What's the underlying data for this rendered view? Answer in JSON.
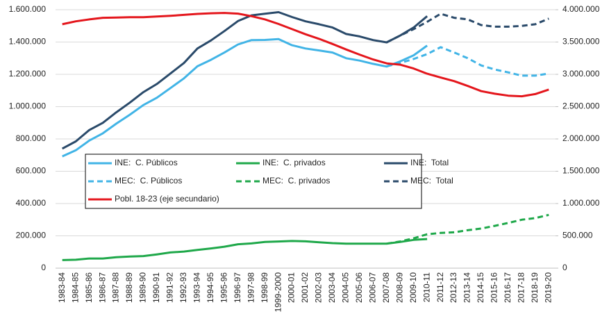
{
  "chart_data": {
    "type": "line",
    "categories": [
      "1983-84",
      "1984-85",
      "1985-86",
      "1986-87",
      "1987-88",
      "1988-89",
      "1989-90",
      "1990-91",
      "1991-92",
      "1992-93",
      "1993-94",
      "1994-95",
      "1995-96",
      "1996-97",
      "1997-98",
      "1998-99",
      "1999-2000",
      "2000-01",
      "2001-02",
      "2002-03",
      "2003-04",
      "2004-05",
      "2005-06",
      "2006-07",
      "2007-08",
      "2008-09",
      "2009-10",
      "2010-11",
      "2011-12",
      "2012-13",
      "2013-14",
      "2014-15",
      "2015-16",
      "2016-17",
      "2017-18",
      "2018-19",
      "2019-20"
    ],
    "ylim": [
      0,
      1600000
    ],
    "yticks": [
      0,
      {
        "value": 200000,
        "label": "200.000"
      },
      {
        "value": 400000,
        "label": "400.000"
      },
      {
        "value": 600000,
        "label": "600.000"
      },
      {
        "value": 800000,
        "label": "800.000"
      },
      {
        "value": 1000000,
        "label": "1.000.000"
      },
      {
        "value": 1200000,
        "label": "1.200.000"
      },
      {
        "value": 1400000,
        "label": "1.400.000"
      },
      {
        "value": 1600000,
        "label": "1.600.000"
      }
    ],
    "y2lim": [
      0,
      4000000
    ],
    "y2ticks": [
      0,
      {
        "value": 500000,
        "label": "500.000"
      },
      {
        "value": 1000000,
        "label": "1.000.000"
      },
      {
        "value": 1500000,
        "label": "1.500.000"
      },
      {
        "value": 2000000,
        "label": "2.000.000"
      },
      {
        "value": 2500000,
        "label": "2.500.000"
      },
      {
        "value": 3000000,
        "label": "3.000.000"
      },
      {
        "value": 3500000,
        "label": "3.500.000"
      },
      {
        "value": 4000000,
        "label": "4.000.000"
      }
    ],
    "grid": true,
    "series": [
      {
        "name": "INE:  C. Públicos",
        "color": "#41b4e6",
        "line_style": "solid",
        "values": [
          692000,
          730000,
          790000,
          835000,
          895000,
          950000,
          1010000,
          1055000,
          1115000,
          1175000,
          1250000,
          1290000,
          1335000,
          1385000,
          1412000,
          1413000,
          1418000,
          1380000,
          1360000,
          1348000,
          1335000,
          1300000,
          1285000,
          1265000,
          1248000,
          1280000,
          1318000,
          1378000,
          null,
          null,
          null,
          null,
          null,
          null,
          null,
          null,
          null
        ]
      },
      {
        "name": "INE:  C. privados",
        "color": "#1fa84a",
        "line_style": "solid",
        "values": [
          50000,
          52000,
          60000,
          60000,
          68000,
          72000,
          75000,
          85000,
          97000,
          103000,
          113000,
          122000,
          133000,
          148000,
          153000,
          162000,
          165000,
          168000,
          166000,
          160000,
          155000,
          152000,
          152000,
          152000,
          152000,
          162000,
          175000,
          180000,
          null,
          null,
          null,
          null,
          null,
          null,
          null,
          null,
          null
        ]
      },
      {
        "name": "INE:  Total",
        "color": "#2a4a6a",
        "line_style": "solid",
        "values": [
          740000,
          785000,
          855000,
          900000,
          965000,
          1025000,
          1090000,
          1140000,
          1205000,
          1270000,
          1360000,
          1410000,
          1468000,
          1530000,
          1565000,
          1575000,
          1585000,
          1555000,
          1528000,
          1510000,
          1490000,
          1450000,
          1435000,
          1412000,
          1398000,
          1440000,
          1490000,
          1560000,
          null,
          null,
          null,
          null,
          null,
          null,
          null,
          null,
          null
        ]
      },
      {
        "name": "MEC:  C. Públicos",
        "color": "#41b4e6",
        "line_style": "dashed",
        "values": [
          null,
          null,
          null,
          null,
          null,
          null,
          null,
          null,
          null,
          null,
          null,
          null,
          null,
          null,
          null,
          null,
          null,
          null,
          null,
          null,
          null,
          null,
          null,
          null,
          1250000,
          1270000,
          1295000,
          1325000,
          1368000,
          1335000,
          1300000,
          1255000,
          1230000,
          1212000,
          1192000,
          1192000,
          1205000
        ]
      },
      {
        "name": "MEC:  C. privados",
        "color": "#1fa84a",
        "line_style": "dashed",
        "values": [
          null,
          null,
          null,
          null,
          null,
          null,
          null,
          null,
          null,
          null,
          null,
          null,
          null,
          null,
          null,
          null,
          null,
          null,
          null,
          null,
          null,
          null,
          null,
          null,
          152000,
          165000,
          185000,
          210000,
          218000,
          222000,
          235000,
          245000,
          262000,
          280000,
          300000,
          310000,
          330000
        ]
      },
      {
        "name": "MEC:  Total",
        "color": "#2a4a6a",
        "line_style": "dashed",
        "values": [
          null,
          null,
          null,
          null,
          null,
          null,
          null,
          null,
          null,
          null,
          null,
          null,
          null,
          null,
          null,
          null,
          null,
          null,
          null,
          null,
          null,
          null,
          null,
          null,
          1398000,
          1440000,
          1480000,
          1525000,
          1575000,
          1550000,
          1540000,
          1505000,
          1495000,
          1495000,
          1500000,
          1510000,
          1545000
        ]
      },
      {
        "name": "Pobl. 18-23 (eje secundario)",
        "color": "#e4161c",
        "line_style": "solid",
        "axis": "y2",
        "values": [
          3775000,
          3820000,
          3850000,
          3875000,
          3880000,
          3885000,
          3885000,
          3895000,
          3905000,
          3920000,
          3935000,
          3945000,
          3950000,
          3940000,
          3900000,
          3850000,
          3780000,
          3700000,
          3620000,
          3550000,
          3470000,
          3385000,
          3305000,
          3230000,
          3170000,
          3150000,
          3090000,
          3010000,
          2950000,
          2895000,
          2820000,
          2740000,
          2700000,
          2670000,
          2660000,
          2695000,
          2765000
        ]
      }
    ]
  }
}
